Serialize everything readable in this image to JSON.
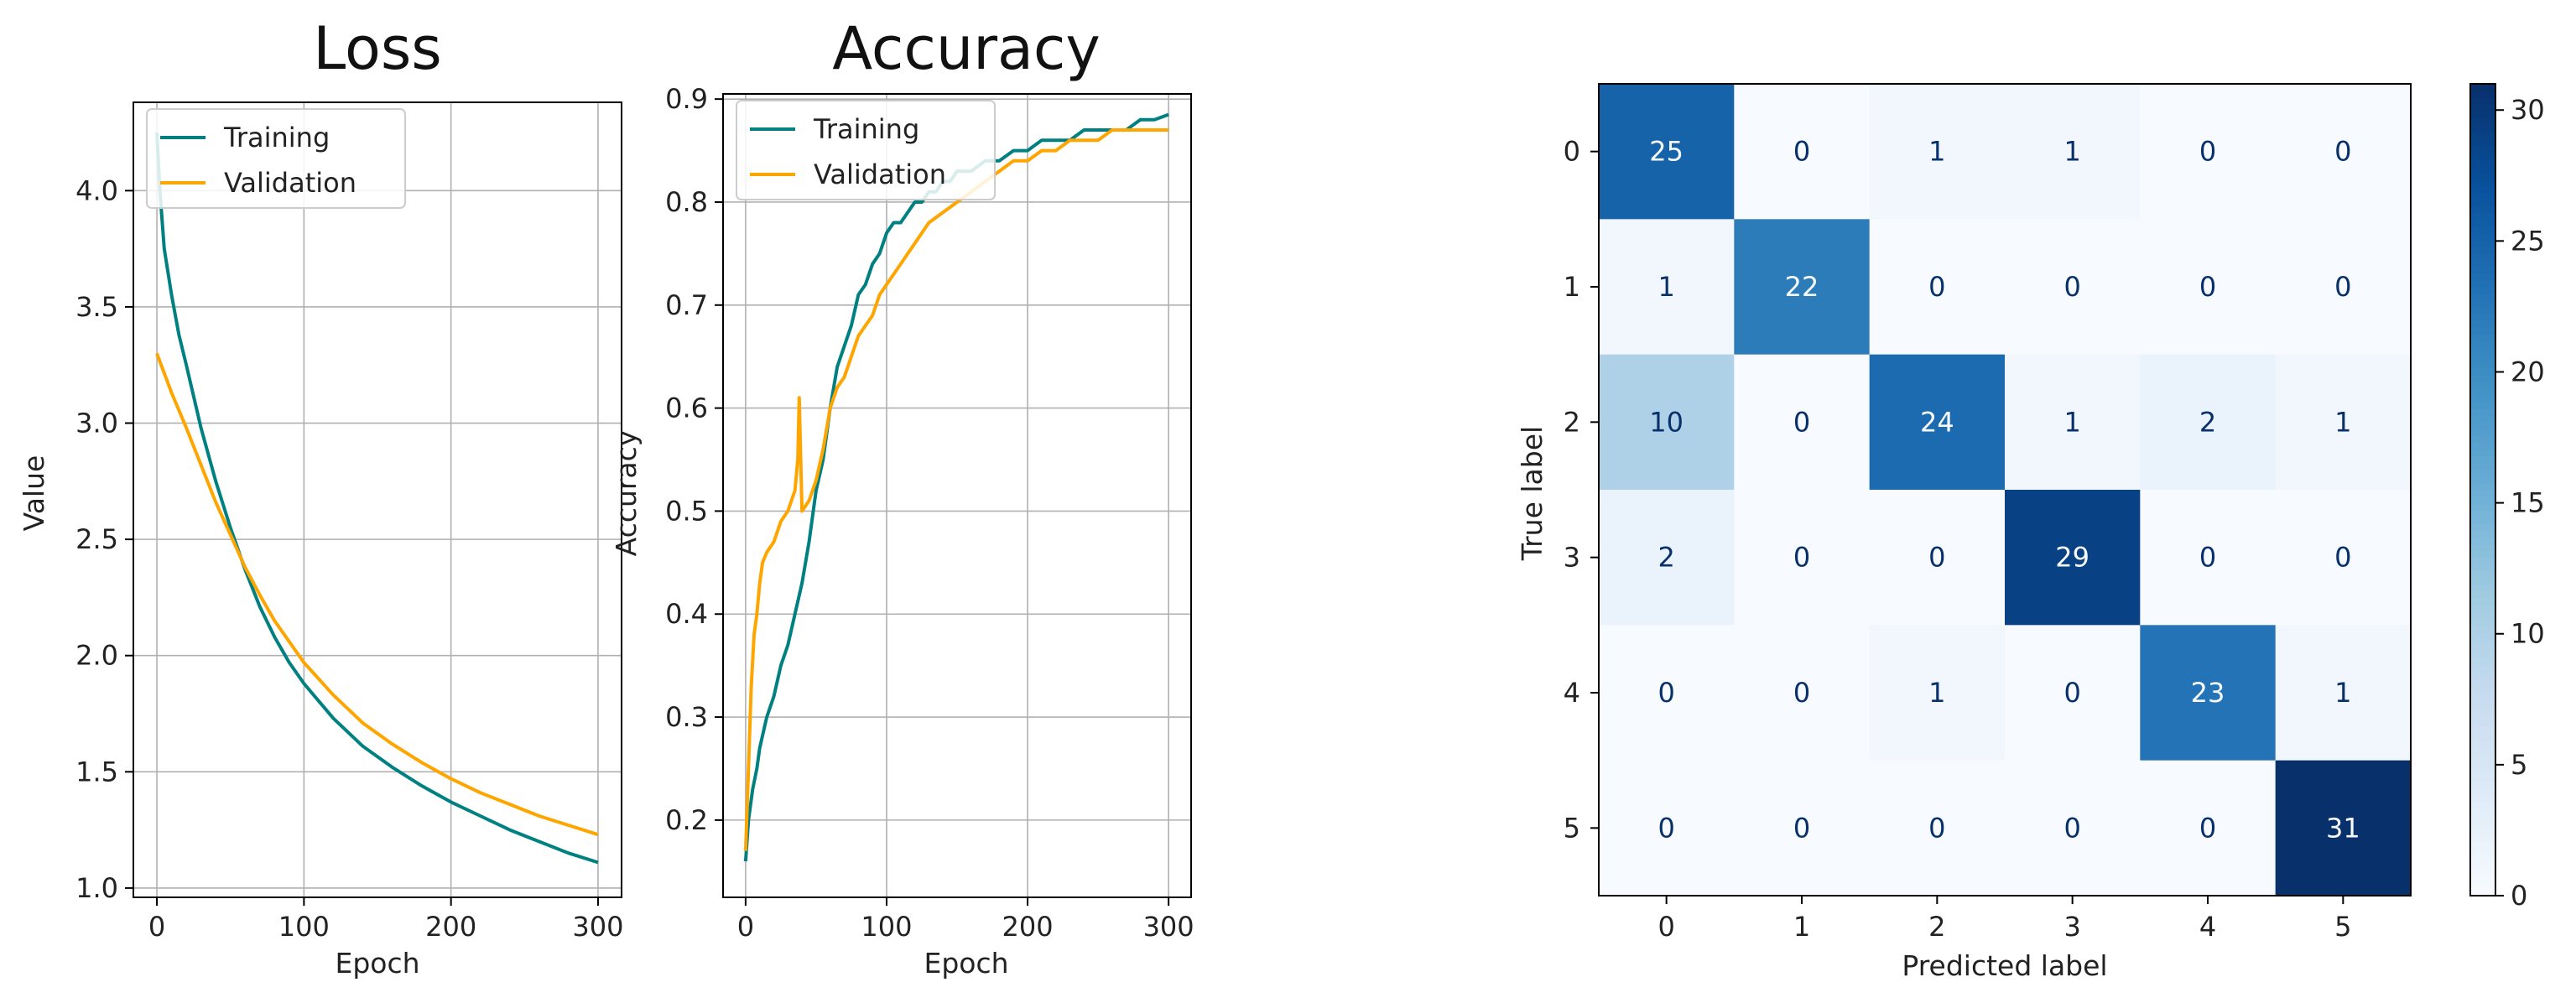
{
  "chart_data": [
    {
      "type": "line",
      "title": "Loss",
      "xlabel": "Epoch",
      "ylabel": "Value",
      "xlim": [
        -16,
        316
      ],
      "ylim": [
        0.96,
        4.38
      ],
      "xticks": [
        0,
        100,
        200,
        300
      ],
      "yticks": [
        1.0,
        1.5,
        2.0,
        2.5,
        3.0,
        3.5,
        4.0
      ],
      "ytick_decimals": 1,
      "grid": true,
      "legend": "top-left",
      "series": [
        {
          "name": "Training",
          "color": "#008080",
          "x": [
            0,
            2,
            5,
            10,
            15,
            20,
            30,
            40,
            50,
            60,
            70,
            80,
            90,
            100,
            120,
            140,
            160,
            180,
            200,
            220,
            240,
            260,
            280,
            300
          ],
          "y": [
            4.25,
            4.0,
            3.75,
            3.55,
            3.38,
            3.25,
            2.98,
            2.75,
            2.55,
            2.37,
            2.21,
            2.08,
            1.97,
            1.88,
            1.73,
            1.61,
            1.52,
            1.44,
            1.37,
            1.31,
            1.25,
            1.2,
            1.15,
            1.11
          ]
        },
        {
          "name": "Validation",
          "color": "#FFA500",
          "x": [
            0,
            10,
            20,
            30,
            40,
            50,
            60,
            70,
            80,
            90,
            100,
            120,
            140,
            160,
            180,
            200,
            220,
            240,
            260,
            280,
            300
          ],
          "y": [
            3.3,
            3.13,
            2.98,
            2.82,
            2.66,
            2.52,
            2.38,
            2.26,
            2.15,
            2.06,
            1.97,
            1.83,
            1.71,
            1.62,
            1.54,
            1.47,
            1.41,
            1.36,
            1.31,
            1.27,
            1.23
          ]
        }
      ]
    },
    {
      "type": "line",
      "title": "Accuracy",
      "xlabel": "Epoch",
      "ylabel": "Accuracy",
      "xlim": [
        -16,
        316
      ],
      "ylim": [
        0.125,
        0.905
      ],
      "xticks": [
        0,
        100,
        200,
        300
      ],
      "yticks": [
        0.2,
        0.3,
        0.4,
        0.5,
        0.6,
        0.7,
        0.8,
        0.9
      ],
      "ytick_decimals": 1,
      "grid": true,
      "legend": "top-left",
      "series": [
        {
          "name": "Training",
          "color": "#008080",
          "x": [
            0,
            2,
            5,
            8,
            10,
            15,
            20,
            25,
            30,
            35,
            40,
            45,
            50,
            55,
            60,
            65,
            70,
            75,
            80,
            85,
            90,
            95,
            100,
            105,
            110,
            115,
            120,
            125,
            130,
            135,
            140,
            145,
            150,
            160,
            170,
            180,
            190,
            200,
            210,
            220,
            230,
            240,
            250,
            260,
            270,
            280,
            290,
            300
          ],
          "y": [
            0.16,
            0.2,
            0.23,
            0.25,
            0.27,
            0.3,
            0.32,
            0.35,
            0.37,
            0.4,
            0.43,
            0.47,
            0.52,
            0.55,
            0.6,
            0.64,
            0.66,
            0.68,
            0.71,
            0.72,
            0.74,
            0.75,
            0.77,
            0.78,
            0.78,
            0.79,
            0.8,
            0.8,
            0.81,
            0.81,
            0.82,
            0.82,
            0.83,
            0.83,
            0.84,
            0.84,
            0.85,
            0.85,
            0.86,
            0.86,
            0.86,
            0.87,
            0.87,
            0.87,
            0.87,
            0.88,
            0.88,
            0.885
          ]
        },
        {
          "name": "Validation",
          "color": "#FFA500",
          "x": [
            0,
            2,
            4,
            6,
            8,
            10,
            12,
            15,
            20,
            25,
            30,
            35,
            37,
            38,
            40,
            45,
            50,
            55,
            60,
            65,
            70,
            75,
            80,
            85,
            90,
            95,
            100,
            110,
            120,
            130,
            140,
            150,
            160,
            170,
            180,
            190,
            200,
            210,
            220,
            230,
            240,
            250,
            260,
            270,
            280,
            290,
            300
          ],
          "y": [
            0.17,
            0.25,
            0.33,
            0.38,
            0.4,
            0.43,
            0.45,
            0.46,
            0.47,
            0.49,
            0.5,
            0.52,
            0.55,
            0.61,
            0.5,
            0.51,
            0.53,
            0.56,
            0.6,
            0.62,
            0.63,
            0.65,
            0.67,
            0.68,
            0.69,
            0.71,
            0.72,
            0.74,
            0.76,
            0.78,
            0.79,
            0.8,
            0.81,
            0.82,
            0.83,
            0.84,
            0.84,
            0.85,
            0.85,
            0.86,
            0.86,
            0.86,
            0.87,
            0.87,
            0.87,
            0.87,
            0.87
          ]
        }
      ]
    },
    {
      "type": "heatmap",
      "xlabel": "Predicted label",
      "ylabel": "True label",
      "x_categories": [
        "0",
        "1",
        "2",
        "3",
        "4",
        "5"
      ],
      "y_categories": [
        "0",
        "1",
        "2",
        "3",
        "4",
        "5"
      ],
      "matrix": [
        [
          25,
          0,
          1,
          1,
          0,
          0
        ],
        [
          1,
          22,
          0,
          0,
          0,
          0
        ],
        [
          10,
          0,
          24,
          1,
          2,
          1
        ],
        [
          2,
          0,
          0,
          29,
          0,
          0
        ],
        [
          0,
          0,
          1,
          0,
          23,
          1
        ],
        [
          0,
          0,
          0,
          0,
          0,
          31
        ]
      ],
      "colormap": "Blues",
      "vmin": 0,
      "vmax": 31,
      "colorbar_ticks": [
        0,
        5,
        10,
        15,
        20,
        25,
        30
      ]
    }
  ]
}
